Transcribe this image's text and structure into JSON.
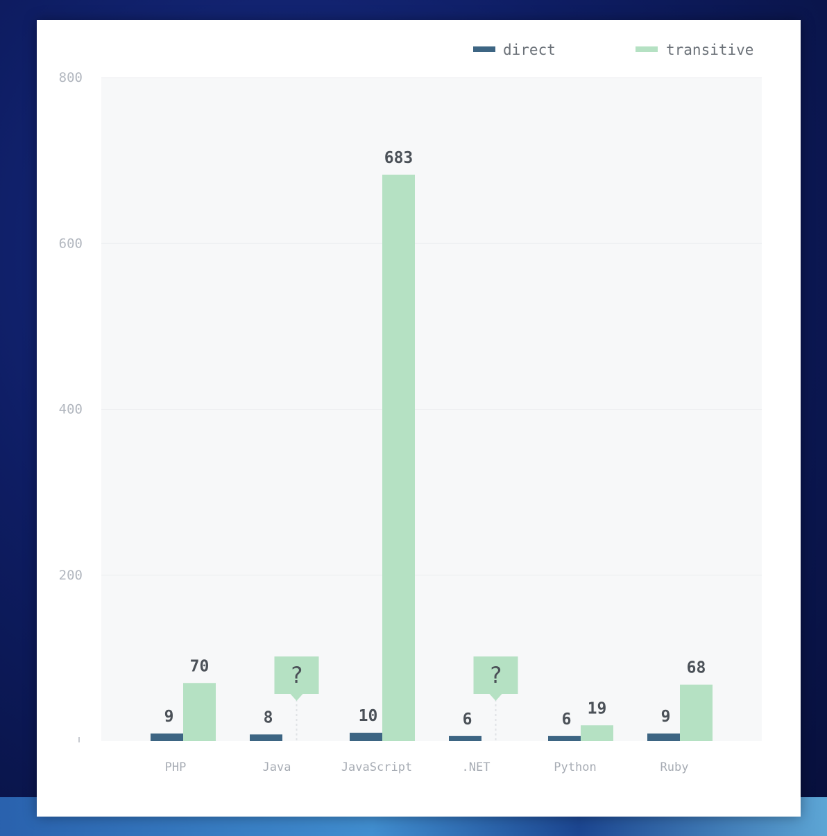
{
  "chart_data": {
    "type": "bar",
    "categories": [
      "PHP",
      "Java",
      "JavaScript",
      ".NET",
      "Python",
      "Ruby"
    ],
    "series": [
      {
        "name": "direct",
        "values": [
          9,
          8,
          10,
          6,
          6,
          9
        ],
        "labels": [
          "9",
          "8",
          "10",
          "6",
          "6",
          "9"
        ],
        "color": "#3d6583"
      },
      {
        "name": "transitive",
        "values": [
          70,
          null,
          683,
          null,
          19,
          68
        ],
        "labels": [
          "70",
          "?",
          "683",
          "?",
          "19",
          "68"
        ],
        "color": "#b5e1c3"
      }
    ],
    "unknown_marker": "?",
    "yticks": [
      "800",
      "600",
      "400",
      "200"
    ],
    "ylim": [
      0,
      800
    ],
    "grid": true,
    "legend_position": "top-right",
    "colors": {
      "plot_background": "#f7f8f9",
      "gridline": "#eceef0",
      "unknown_box": "#b5e1c3"
    }
  }
}
